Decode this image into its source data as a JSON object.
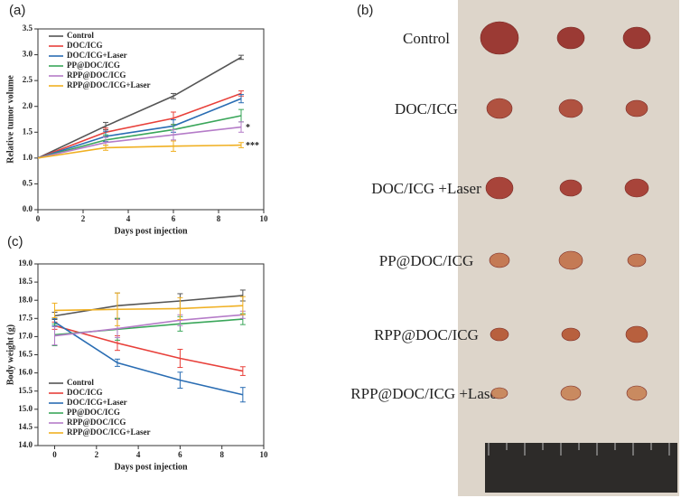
{
  "chart_data": [
    {
      "type": "line",
      "panel_label": "(a)",
      "x_label": "Days post injection",
      "y_label": "Relative tumor volume",
      "x": [
        0,
        3,
        6,
        9
      ],
      "xlim": [
        0,
        10
      ],
      "xticks": [
        0,
        2,
        4,
        6,
        8,
        10
      ],
      "ylim": [
        0,
        3.5
      ],
      "yticks": [
        {
          "value": 0,
          "label": "0.0"
        },
        0.5,
        {
          "value": 1,
          "label": "1.0"
        },
        1.5,
        {
          "value": 2,
          "label": "2.0"
        },
        2.5,
        {
          "value": 3,
          "label": "3.0"
        },
        3.5
      ],
      "legend": "upper left",
      "annotations": [
        "*",
        "***"
      ],
      "series": [
        {
          "name": "Control",
          "color": "#555555",
          "values": [
            1,
            1.62,
            2.2,
            2.95
          ],
          "errors": [
            0,
            0.07,
            0.05,
            0.04
          ]
        },
        {
          "name": "DOC/ICG",
          "color": "#e8403a",
          "values": [
            1,
            1.5,
            1.77,
            2.25
          ],
          "errors": [
            0,
            0.08,
            0.12,
            0.05
          ]
        },
        {
          "name": "DOC/ICG+Laser",
          "color": "#2a6db3",
          "values": [
            1,
            1.42,
            1.62,
            2.15
          ],
          "errors": [
            0,
            0.1,
            0.12,
            0.08
          ]
        },
        {
          "name": "PP@DOC/ICG",
          "color": "#3aa65a",
          "values": [
            1,
            1.35,
            1.55,
            1.82
          ],
          "errors": [
            0,
            0.1,
            0.1,
            0.12
          ]
        },
        {
          "name": "RPP@DOC/ICG",
          "color": "#b57cc8",
          "values": [
            1,
            1.3,
            1.45,
            1.6
          ],
          "errors": [
            0,
            0.1,
            0.1,
            0.1
          ]
        },
        {
          "name": "RPP@DOC/ICG+Laser",
          "color": "#f0b022",
          "values": [
            1,
            1.2,
            1.23,
            1.25
          ],
          "errors": [
            0,
            0.05,
            0.1,
            0.05
          ]
        }
      ]
    },
    {
      "type": "line",
      "panel_label": "(c)",
      "x_label": "Days post injection",
      "y_label": "Body weight (g)",
      "x": [
        0,
        3,
        6,
        9
      ],
      "xlim": [
        -0.8,
        10
      ],
      "xticks": [
        0,
        2,
        4,
        6,
        8,
        10
      ],
      "ylim": [
        14,
        19
      ],
      "yticks": [
        {
          "value": 14,
          "label": "14.0"
        },
        14.5,
        {
          "value": 15,
          "label": "15.0"
        },
        15.5,
        {
          "value": 16,
          "label": "16.0"
        },
        16.5,
        {
          "value": 17,
          "label": "17.0"
        },
        17.5,
        {
          "value": 18,
          "label": "18.0"
        },
        18.5,
        {
          "value": 19,
          "label": "19.0"
        }
      ],
      "legend": "lower left",
      "series": [
        {
          "name": "Control",
          "color": "#555555",
          "values": [
            17.57,
            17.85,
            17.98,
            18.13
          ],
          "errors": [
            0.1,
            0.35,
            0.2,
            0.15
          ]
        },
        {
          "name": "DOC/ICG",
          "color": "#e8403a",
          "values": [
            17.3,
            16.82,
            16.4,
            16.05
          ],
          "errors": [
            0.1,
            0.2,
            0.25,
            0.12
          ]
        },
        {
          "name": "DOC/ICG+Laser",
          "color": "#2a6db3",
          "values": [
            17.4,
            16.28,
            15.8,
            15.4
          ],
          "errors": [
            0.1,
            0.1,
            0.22,
            0.2
          ]
        },
        {
          "name": "PP@DOC/ICG",
          "color": "#3aa65a",
          "values": [
            17.05,
            17.2,
            17.35,
            17.48
          ],
          "errors": [
            0.3,
            0.3,
            0.2,
            0.15
          ]
        },
        {
          "name": "RPP@DOC/ICG",
          "color": "#b57cc8",
          "values": [
            17.02,
            17.22,
            17.45,
            17.6
          ],
          "errors": [
            0.25,
            0.25,
            0.15,
            0.1
          ]
        },
        {
          "name": "RPP@DOC/ICG+Laser",
          "color": "#f0b022",
          "values": [
            17.72,
            17.75,
            17.77,
            17.85
          ],
          "errors": [
            0.2,
            0.45,
            0.3,
            0.25
          ]
        }
      ]
    }
  ],
  "photo": {
    "panel_label": "(b)",
    "groups": [
      "Control",
      "DOC/ICG",
      "DOC/ICG +Laser",
      "PP@DOC/ICG",
      "RPP@DOC/ICG",
      "RPP@DOC/ICG +Laser"
    ]
  }
}
